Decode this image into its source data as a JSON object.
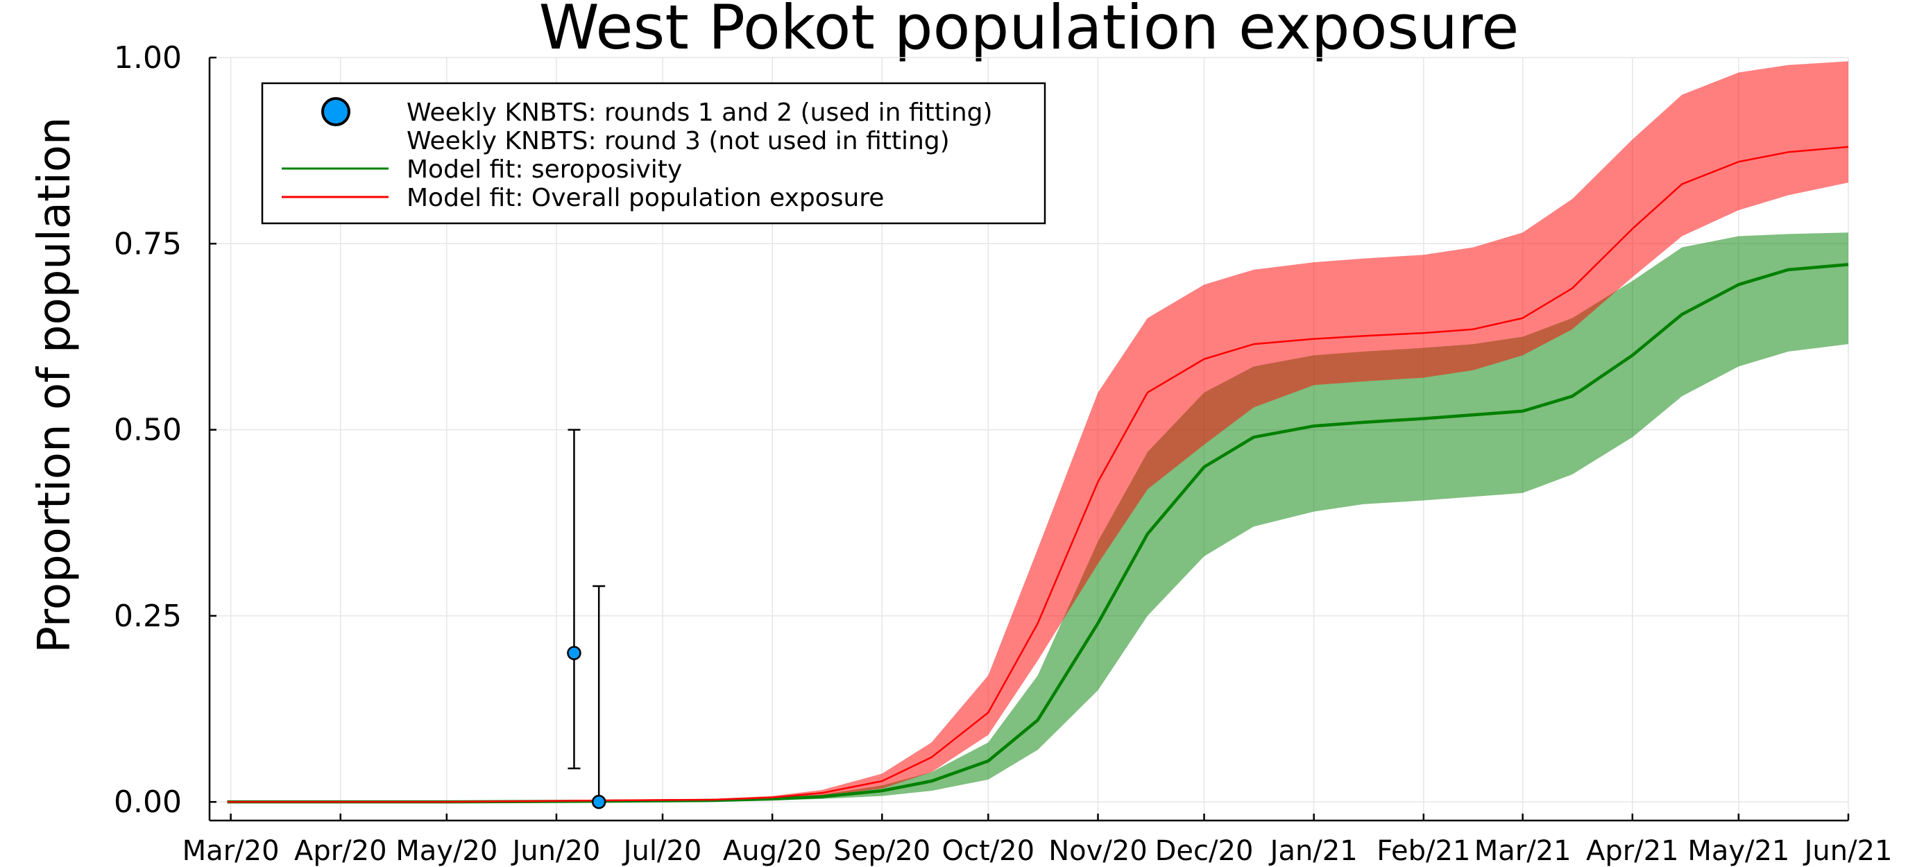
{
  "chart_data": {
    "type": "line",
    "title": "West Pokot population exposure",
    "xlabel": "",
    "ylabel": "Proportion of population",
    "xlim": [
      "2020-02-24",
      "2021-06-01"
    ],
    "ylim": [
      -0.025,
      1.0
    ],
    "x_ticks": [
      "2020-03-01",
      "2020-04-01",
      "2020-05-01",
      "2020-06-01",
      "2020-07-01",
      "2020-08-01",
      "2020-09-01",
      "2020-10-01",
      "2020-11-01",
      "2020-12-01",
      "2021-01-01",
      "2021-02-01",
      "2021-03-01",
      "2021-04-01",
      "2021-05-01",
      "2021-06-01"
    ],
    "x_tick_labels": [
      "Mar/20",
      "Apr/20",
      "May/20",
      "Jun/20",
      "Jul/20",
      "Aug/20",
      "Sep/20",
      "Oct/20",
      "Nov/20",
      "Dec/20",
      "Jan/21",
      "Feb/21",
      "Mar/21",
      "Apr/21",
      "May/21",
      "Jun/21"
    ],
    "y_ticks": [
      0.0,
      0.25,
      0.5,
      0.75,
      1.0
    ],
    "y_tick_labels": [
      "0.00",
      "0.25",
      "0.50",
      "0.75",
      "1.00"
    ],
    "grid": true,
    "legend_position": "top-left",
    "legend": [
      {
        "label": "Weekly KNBTS: rounds 1 and 2 (used in fitting)",
        "kind": "marker",
        "color": "#009af9"
      },
      {
        "label": "Weekly KNBTS: round 3 (not used in fitting)",
        "kind": "none",
        "color": ""
      },
      {
        "label": "Model fit: seroposivity",
        "kind": "line",
        "color": "#008000"
      },
      {
        "label": "Model fit: Overall population exposure",
        "kind": "line",
        "color": "#ff0000"
      }
    ],
    "colors": {
      "points": "#009af9",
      "seropositivity": "#008000",
      "seropositivity_band": "#008000",
      "exposure": "#ff0000",
      "exposure_band": "#ff0000"
    },
    "points": [
      {
        "x": "2020-06-06",
        "y": 0.2,
        "lower": 0.045,
        "upper": 0.5
      },
      {
        "x": "2020-06-13",
        "y": 0.0,
        "lower": 0.0,
        "upper": 0.29
      }
    ],
    "series": [
      {
        "name": "Model fit: Overall population exposure",
        "x": [
          "2020-02-29",
          "2020-05-01",
          "2020-06-15",
          "2020-07-15",
          "2020-08-01",
          "2020-08-15",
          "2020-09-01",
          "2020-09-15",
          "2020-10-01",
          "2020-10-15",
          "2020-11-01",
          "2020-11-15",
          "2020-12-01",
          "2020-12-15",
          "2021-01-01",
          "2021-01-15",
          "2021-02-01",
          "2021-02-15",
          "2021-03-01",
          "2021-03-15",
          "2021-04-01",
          "2021-04-15",
          "2021-05-01",
          "2021-05-15",
          "2021-06-01"
        ],
        "y": [
          0.0,
          0.0,
          0.002,
          0.003,
          0.006,
          0.012,
          0.028,
          0.06,
          0.12,
          0.24,
          0.43,
          0.55,
          0.595,
          0.615,
          0.622,
          0.626,
          0.63,
          0.635,
          0.65,
          0.69,
          0.77,
          0.83,
          0.86,
          0.873,
          0.88
        ],
        "lower": [
          0.0,
          0.0,
          0.0015,
          0.002,
          0.004,
          0.008,
          0.018,
          0.04,
          0.09,
          0.19,
          0.32,
          0.42,
          0.48,
          0.53,
          0.56,
          0.565,
          0.57,
          0.58,
          0.6,
          0.635,
          0.705,
          0.76,
          0.795,
          0.815,
          0.832
        ],
        "upper": [
          0.0,
          0.0,
          0.003,
          0.004,
          0.008,
          0.016,
          0.038,
          0.08,
          0.17,
          0.34,
          0.55,
          0.65,
          0.695,
          0.715,
          0.725,
          0.73,
          0.735,
          0.745,
          0.765,
          0.81,
          0.89,
          0.95,
          0.98,
          0.99,
          0.995
        ]
      },
      {
        "name": "Model fit: seroposivity",
        "x": [
          "2020-02-29",
          "2020-05-01",
          "2020-06-15",
          "2020-07-15",
          "2020-08-01",
          "2020-08-15",
          "2020-09-01",
          "2020-09-15",
          "2020-10-01",
          "2020-10-15",
          "2020-11-01",
          "2020-11-15",
          "2020-12-01",
          "2020-12-15",
          "2021-01-01",
          "2021-01-15",
          "2021-02-01",
          "2021-02-15",
          "2021-03-01",
          "2021-03-15",
          "2021-04-01",
          "2021-04-15",
          "2021-05-01",
          "2021-05-15",
          "2021-06-01"
        ],
        "y": [
          0.0,
          0.0,
          0.001,
          0.002,
          0.004,
          0.007,
          0.015,
          0.028,
          0.055,
          0.11,
          0.24,
          0.36,
          0.45,
          0.49,
          0.505,
          0.51,
          0.515,
          0.52,
          0.525,
          0.545,
          0.6,
          0.655,
          0.695,
          0.715,
          0.722
        ],
        "lower": [
          0.0,
          0.0,
          0.0005,
          0.001,
          0.002,
          0.004,
          0.008,
          0.015,
          0.03,
          0.07,
          0.15,
          0.25,
          0.33,
          0.37,
          0.39,
          0.4,
          0.405,
          0.41,
          0.415,
          0.44,
          0.49,
          0.545,
          0.585,
          0.605,
          0.615
        ],
        "upper": [
          0.0,
          0.0,
          0.0015,
          0.003,
          0.006,
          0.01,
          0.022,
          0.04,
          0.08,
          0.17,
          0.35,
          0.47,
          0.55,
          0.585,
          0.6,
          0.605,
          0.61,
          0.615,
          0.625,
          0.65,
          0.7,
          0.745,
          0.76,
          0.763,
          0.765
        ]
      }
    ]
  }
}
